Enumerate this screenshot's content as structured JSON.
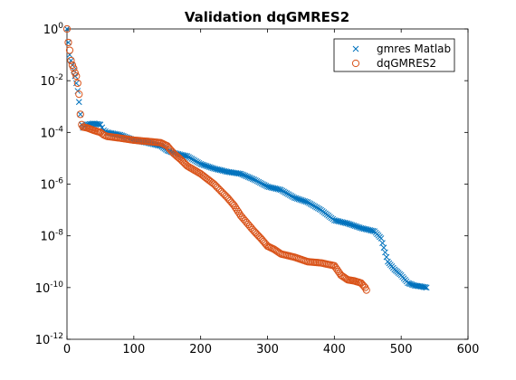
{
  "chart_data": {
    "type": "scatter",
    "title": "Validation dqGMRES2",
    "xlabel": "",
    "ylabel": "",
    "xlim": [
      0,
      600
    ],
    "ylim": [
      1e-12,
      1
    ],
    "yscale": "log",
    "xticks": [
      "0",
      "100",
      "200",
      "300",
      "400",
      "500",
      "600"
    ],
    "yticks": [
      {
        "base": "10",
        "exp": "0"
      },
      {
        "base": "10",
        "exp": "-2"
      },
      {
        "base": "10",
        "exp": "-4"
      },
      {
        "base": "10",
        "exp": "-6"
      },
      {
        "base": "10",
        "exp": "-8"
      },
      {
        "base": "10",
        "exp": "-10"
      },
      {
        "base": "10",
        "exp": "-12"
      }
    ],
    "grid": false,
    "legend_position": "top-right",
    "series": [
      {
        "name": "gmres Matlab",
        "marker": "x",
        "color": "#0072BD",
        "x": [
          0,
          2,
          4,
          6,
          8,
          10,
          12,
          14,
          16,
          18,
          20,
          22,
          24,
          30,
          40,
          50,
          55,
          60,
          80,
          100,
          120,
          140,
          150,
          160,
          180,
          200,
          220,
          240,
          260,
          280,
          300,
          320,
          340,
          360,
          380,
          400,
          420,
          440,
          460,
          470,
          480,
          490,
          500,
          510,
          520,
          530,
          538
        ],
        "y": [
          1.0,
          0.3,
          0.1,
          0.06,
          0.04,
          0.025,
          0.015,
          0.008,
          0.004,
          0.0015,
          0.0005,
          0.0002,
          0.00015,
          0.0002,
          0.00022,
          0.0002,
          0.00012,
          0.0001,
          8e-05,
          5e-05,
          4e-05,
          3e-05,
          2e-05,
          1.6e-05,
          1.2e-05,
          6e-06,
          4e-06,
          3e-06,
          2.5e-06,
          1.5e-06,
          8e-07,
          6e-07,
          3e-07,
          2e-07,
          1e-07,
          4e-08,
          3e-08,
          2e-08,
          1.5e-08,
          8e-09,
          1e-09,
          5e-10,
          3e-10,
          1.5e-10,
          1.2e-10,
          1.1e-10,
          1e-10
        ]
      },
      {
        "name": "dqGMRES2",
        "marker": "o",
        "color": "#D95319",
        "x": [
          0,
          2,
          4,
          6,
          8,
          10,
          12,
          14,
          16,
          18,
          20,
          22,
          24,
          30,
          40,
          50,
          55,
          60,
          80,
          100,
          120,
          140,
          150,
          160,
          170,
          180,
          200,
          220,
          240,
          250,
          260,
          280,
          290,
          300,
          310,
          320,
          340,
          360,
          380,
          400,
          410,
          420,
          430,
          440,
          446,
          448
        ],
        "y": [
          1.0,
          0.3,
          0.15,
          0.06,
          0.04,
          0.03,
          0.02,
          0.015,
          0.008,
          0.003,
          0.0005,
          0.0002,
          0.00016,
          0.00015,
          0.00012,
          0.0001,
          8e-05,
          7e-05,
          6e-05,
          5e-05,
          4.5e-05,
          4e-05,
          3e-05,
          1.5e-05,
          9e-06,
          5e-06,
          2.5e-06,
          1e-06,
          3e-07,
          1.5e-07,
          6e-08,
          1.5e-08,
          8e-09,
          4e-09,
          3e-09,
          2e-09,
          1.5e-09,
          1e-09,
          9e-10,
          7e-10,
          3e-10,
          2e-10,
          1.8e-10,
          1.5e-10,
          1e-10,
          8e-11
        ]
      }
    ]
  }
}
